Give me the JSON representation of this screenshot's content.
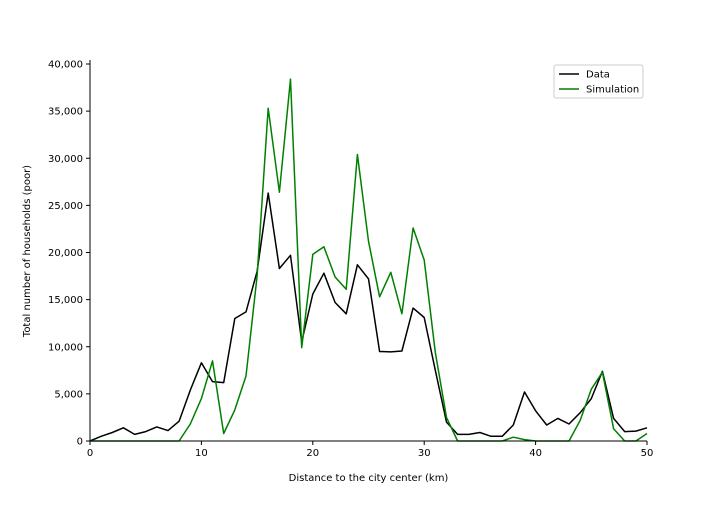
{
  "chart_data": {
    "type": "line",
    "title": "",
    "xlabel": "Distance to the city center (km)",
    "ylabel": "Total number of households (poor)",
    "xlim": [
      0,
      50
    ],
    "ylim": [
      0,
      40000
    ],
    "xticks": [
      0,
      10,
      20,
      30,
      40,
      50
    ],
    "xtick_labels": [
      "0",
      "10",
      "20",
      "30",
      "40",
      "50"
    ],
    "yticks": [
      0,
      5000,
      10000,
      15000,
      20000,
      25000,
      30000,
      35000,
      40000
    ],
    "ytick_labels": [
      "0",
      "5,000",
      "10,000",
      "15,000",
      "20,000",
      "25,000",
      "30,000",
      "35,000",
      "40,000"
    ],
    "grid": false,
    "legend_position": "top-right",
    "x": [
      0,
      1,
      2,
      3,
      4,
      5,
      6,
      7,
      8,
      9,
      10,
      11,
      12,
      13,
      14,
      15,
      16,
      17,
      18,
      19,
      20,
      21,
      22,
      23,
      24,
      25,
      26,
      27,
      28,
      29,
      30,
      31,
      32,
      33,
      34,
      35,
      36,
      37,
      38,
      39,
      40,
      41,
      42,
      43,
      44,
      45,
      46,
      47,
      48,
      49,
      50
    ],
    "series": [
      {
        "name": "Data",
        "color": "#000000",
        "values": [
          0,
          500,
          900,
          1400,
          700,
          1000,
          1500,
          1100,
          2100,
          5400,
          8300,
          6300,
          6200,
          13000,
          13700,
          18000,
          26300,
          18300,
          19700,
          10500,
          15600,
          17800,
          14700,
          13500,
          18700,
          17200,
          9500,
          9450,
          9550,
          14100,
          13100,
          7500,
          2000,
          700,
          700,
          900,
          500,
          500,
          1700,
          5200,
          3200,
          1700,
          2400,
          1800,
          3000,
          4500,
          7400,
          2400,
          1000,
          1050,
          1400
        ]
      },
      {
        "name": "Simulation",
        "color": "#008000",
        "values": [
          0,
          0,
          0,
          0,
          0,
          0,
          0,
          0,
          0,
          1800,
          4500,
          8500,
          800,
          3300,
          6900,
          17500,
          35300,
          26400,
          38400,
          9900,
          19800,
          20600,
          17400,
          16100,
          30400,
          21200,
          15300,
          17900,
          13500,
          22600,
          19200,
          9400,
          2500,
          0,
          0,
          0,
          0,
          0,
          400,
          150,
          0,
          0,
          0,
          0,
          2200,
          5500,
          7300,
          1300,
          0,
          0,
          800
        ]
      }
    ]
  }
}
